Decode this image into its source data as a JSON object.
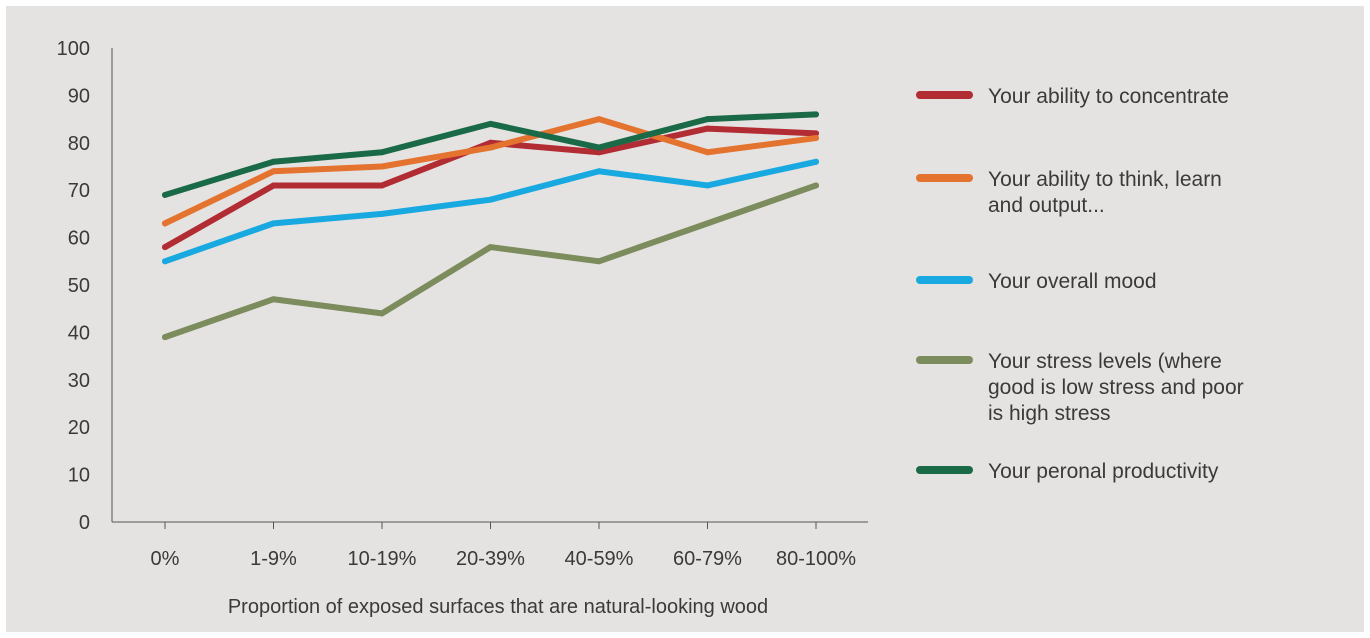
{
  "chart_data": {
    "type": "line",
    "title": "",
    "xlabel": "Proportion of exposed surfaces that are natural-looking wood",
    "ylabel": "",
    "ylim": [
      0,
      100
    ],
    "yticks": [
      0,
      10,
      20,
      30,
      40,
      50,
      60,
      70,
      80,
      90,
      100
    ],
    "categories": [
      "0%",
      "1-9%",
      "10-19%",
      "20-39%",
      "40-59%",
      "60-79%",
      "80-100%"
    ],
    "grid": false,
    "legend_position": "right",
    "series": [
      {
        "name": "Your ability to concentrate",
        "color": "#b22c34",
        "values": [
          58,
          71,
          71,
          80,
          78,
          83,
          82
        ]
      },
      {
        "name": "Your ability to think, learn and output...",
        "legend_lines": [
          "Your ability to think, learn",
          "and output..."
        ],
        "color": "#e3732f",
        "values": [
          63,
          74,
          75,
          79,
          85,
          78,
          81
        ]
      },
      {
        "name": "Your overall mood",
        "color": "#19a9e1",
        "values": [
          55,
          63,
          65,
          68,
          74,
          71,
          76
        ]
      },
      {
        "name": "Your stress levels (where good is low stress and poor is high stress",
        "legend_lines": [
          "Your stress levels (where",
          "good is low stress and poor",
          "is high stress"
        ],
        "color": "#7c8c5c",
        "values": [
          39,
          47,
          44,
          58,
          55,
          63,
          71
        ]
      },
      {
        "name": "Your peronal productivity",
        "color": "#1b6a47",
        "values": [
          69,
          76,
          78,
          84,
          79,
          85,
          86
        ]
      }
    ]
  }
}
